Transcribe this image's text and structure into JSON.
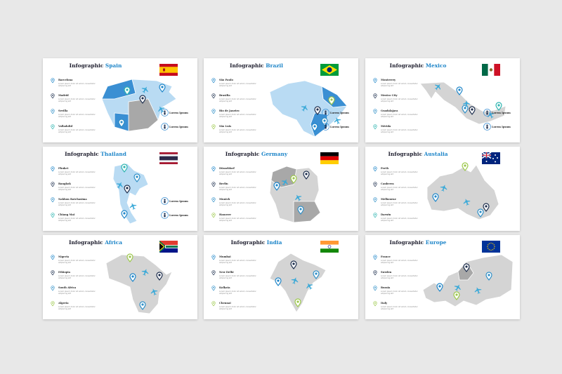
{
  "description_placeholder": "Lorem ipsum dolor sit amet, consectetur adipiscing elit",
  "title_prefix": "Infographic",
  "stat_label": "Lorem Ipsum",
  "colors": {
    "background": "#e8e8e8",
    "accent": "#1f86c9",
    "map_blue": "#b9dbf3",
    "map_dark_blue": "#3a8fd3",
    "map_grey": "#d4d4d4",
    "map_dark_grey": "#a8a8a8",
    "plane": "#3aa9d8"
  },
  "slides": [
    {
      "country": "Spain",
      "flag_icon": "flag-spain-icon",
      "map_icon": "map-spain-icon",
      "items": [
        {
          "name": "Barcelona",
          "pin_color": "#1f86c9"
        },
        {
          "name": "Madrid",
          "pin_color": "#1e2f4e"
        },
        {
          "name": "Sevilla",
          "pin_color": "#2f8fc7"
        },
        {
          "name": "Valladolid",
          "pin_color": "#2fb5b0"
        }
      ],
      "stats": [
        "Lorem Ipsum",
        "Lorem Ipsum"
      ]
    },
    {
      "country": "Brazil",
      "flag_icon": "flag-brazil-icon",
      "map_icon": "map-brazil-icon",
      "items": [
        {
          "name": "São Paulo",
          "pin_color": "#1f86c9"
        },
        {
          "name": "Brasilia",
          "pin_color": "#1e2f4e"
        },
        {
          "name": "Rio de Janeiro",
          "pin_color": "#2f8fc7"
        },
        {
          "name": "São Luis",
          "pin_color": "#9cc84a"
        }
      ],
      "stats": [
        "Lorem Ipsum",
        "Lorem Ipsum"
      ]
    },
    {
      "country": "Mexico",
      "flag_icon": "flag-mexico-icon",
      "map_icon": "map-mexico-icon",
      "items": [
        {
          "name": "Monterrey",
          "pin_color": "#1f86c9"
        },
        {
          "name": "Mexico City",
          "pin_color": "#1e2f4e"
        },
        {
          "name": "Guadalajara",
          "pin_color": "#2f8fc7"
        },
        {
          "name": "Mérida",
          "pin_color": "#2fb5b0"
        }
      ],
      "stats": [
        "Lorem Ipsum",
        "Lorem Ipsum"
      ]
    },
    {
      "country": "Thailand",
      "flag_icon": "flag-thailand-icon",
      "map_icon": "map-thailand-icon",
      "items": [
        {
          "name": "Phuket",
          "pin_color": "#1f86c9"
        },
        {
          "name": "Bangkok",
          "pin_color": "#1e2f4e"
        },
        {
          "name": "Nakhon Ratchasima",
          "pin_color": "#2f8fc7"
        },
        {
          "name": "Chiang Mai",
          "pin_color": "#2fb5b0"
        }
      ],
      "stats": [
        "Lorem Ipsum",
        "Lorem Ipsum"
      ]
    },
    {
      "country": "Germany",
      "flag_icon": "flag-germany-icon",
      "map_icon": "map-germany-icon",
      "items": [
        {
          "name": "Düsseldorf",
          "pin_color": "#1f86c9"
        },
        {
          "name": "Berlin",
          "pin_color": "#1e2f4e"
        },
        {
          "name": "Munich",
          "pin_color": "#2f8fc7"
        },
        {
          "name": "Hanover",
          "pin_color": "#9cc84a"
        }
      ],
      "stats": []
    },
    {
      "country": "Austalia",
      "flag_icon": "flag-australia-icon",
      "map_icon": "map-australia-icon",
      "items": [
        {
          "name": "Perth",
          "pin_color": "#1f86c9"
        },
        {
          "name": "Canberra",
          "pin_color": "#1e2f4e"
        },
        {
          "name": "Melbourne",
          "pin_color": "#2f8fc7"
        },
        {
          "name": "Darwin",
          "pin_color": "#2fb5b0"
        }
      ],
      "stats": []
    },
    {
      "country": "Africa",
      "flag_icon": "flag-south-africa-icon",
      "map_icon": "map-africa-icon",
      "items": [
        {
          "name": "Nigeria",
          "pin_color": "#1f86c9"
        },
        {
          "name": "Ethiopia",
          "pin_color": "#1e2f4e"
        },
        {
          "name": "South Africa",
          "pin_color": "#2f8fc7"
        },
        {
          "name": "Algeria",
          "pin_color": "#9cc84a"
        }
      ],
      "stats": []
    },
    {
      "country": "India",
      "flag_icon": "flag-india-icon",
      "map_icon": "map-india-icon",
      "items": [
        {
          "name": "Mumbai",
          "pin_color": "#1f86c9"
        },
        {
          "name": "New Delhi",
          "pin_color": "#1e2f4e"
        },
        {
          "name": "Kolkata",
          "pin_color": "#2f8fc7"
        },
        {
          "name": "Chennai",
          "pin_color": "#9cc84a"
        }
      ],
      "stats": []
    },
    {
      "country": "Europe",
      "flag_icon": "flag-europe-icon",
      "map_icon": "map-europe-icon",
      "items": [
        {
          "name": "France",
          "pin_color": "#1f86c9"
        },
        {
          "name": "Sweden",
          "pin_color": "#1e2f4e"
        },
        {
          "name": "Russia",
          "pin_color": "#2f8fc7"
        },
        {
          "name": "Italy",
          "pin_color": "#9cc84a"
        }
      ],
      "stats": []
    }
  ]
}
